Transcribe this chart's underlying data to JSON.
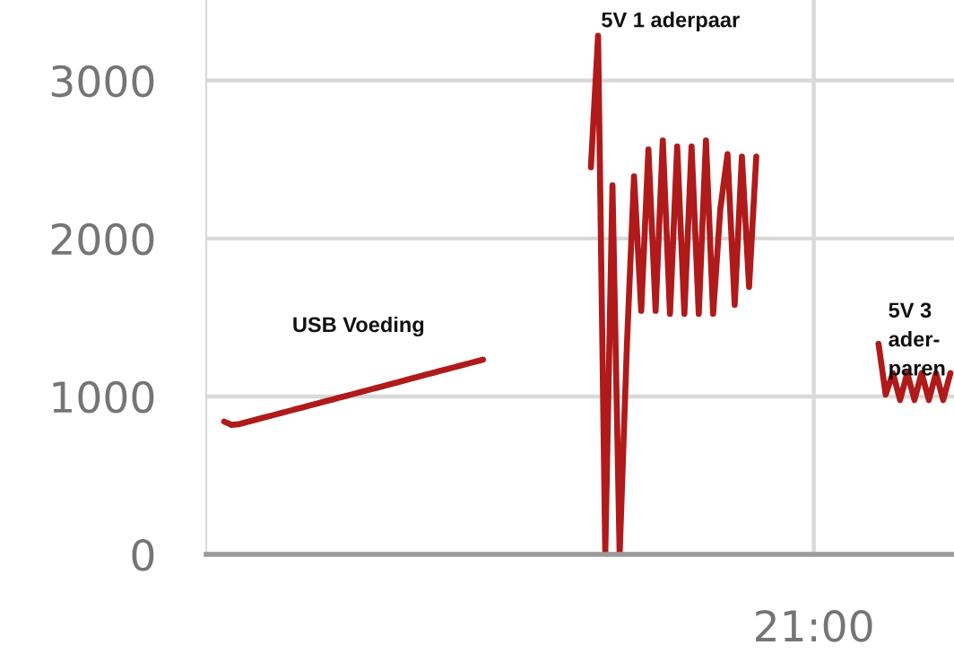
{
  "chart_data": {
    "type": "line",
    "categories": [
      null,
      null,
      null,
      null,
      null,
      null,
      null,
      null,
      null,
      null,
      null,
      null,
      null,
      null,
      null,
      null,
      null,
      null,
      null,
      null,
      null,
      null,
      null,
      null,
      null,
      null,
      null,
      null,
      null,
      null,
      null,
      null,
      null,
      null,
      null,
      null,
      null,
      null,
      null,
      null,
      null,
      null,
      null,
      null,
      null,
      null,
      null,
      null,
      null,
      null,
      null,
      null,
      null,
      null,
      null,
      null,
      null,
      null,
      null,
      null,
      null,
      null,
      null,
      null,
      null,
      null,
      null,
      null,
      null,
      null,
      null,
      null,
      null,
      null,
      null,
      null,
      null,
      null,
      null,
      null,
      null,
      null,
      null,
      null,
      "21:00",
      null,
      null,
      null,
      null,
      null,
      null,
      null,
      null,
      null,
      null,
      null,
      null,
      null,
      null,
      null,
      null,
      null,
      null,
      null
    ],
    "series": [
      {
        "color": "#b01a1a",
        "values": [
          null,
          null,
          841,
          820,
          824,
          836,
          848,
          860,
          872,
          884,
          896,
          908,
          920,
          932,
          944,
          956,
          968,
          980,
          992,
          1004,
          1016,
          1028,
          1040,
          1052,
          1064,
          1076,
          1088,
          1100,
          1113,
          1125,
          1137,
          1149,
          1161,
          1173,
          1185,
          1197,
          1209,
          1221,
          1233,
          null,
          null,
          null,
          null,
          null,
          null,
          null,
          null,
          null,
          null,
          null,
          null,
          null,
          null,
          2451,
          3284,
          0,
          2337,
          0,
          1314,
          2394,
          1542,
          2564,
          1542,
          2621,
          1523,
          2583,
          1523,
          2583,
          1523,
          2621,
          1523,
          2186,
          2534,
          1580,
          2519,
          1693,
          2519,
          null,
          null,
          null,
          null,
          null,
          null,
          null,
          null,
          null,
          null,
          null,
          null,
          null,
          null,
          null,
          null,
          1333,
          1011,
          1148,
          977,
          1148,
          977,
          1148,
          977,
          1148,
          977,
          1148
        ]
      }
    ],
    "ylim": [
      0,
      3510
    ],
    "yticks": [
      0,
      1000,
      2000,
      3000
    ],
    "grid": true,
    "annotations": [
      "USB Voeding",
      "5V 1 aderpaar",
      "5V 3\nader-\nparen"
    ]
  }
}
